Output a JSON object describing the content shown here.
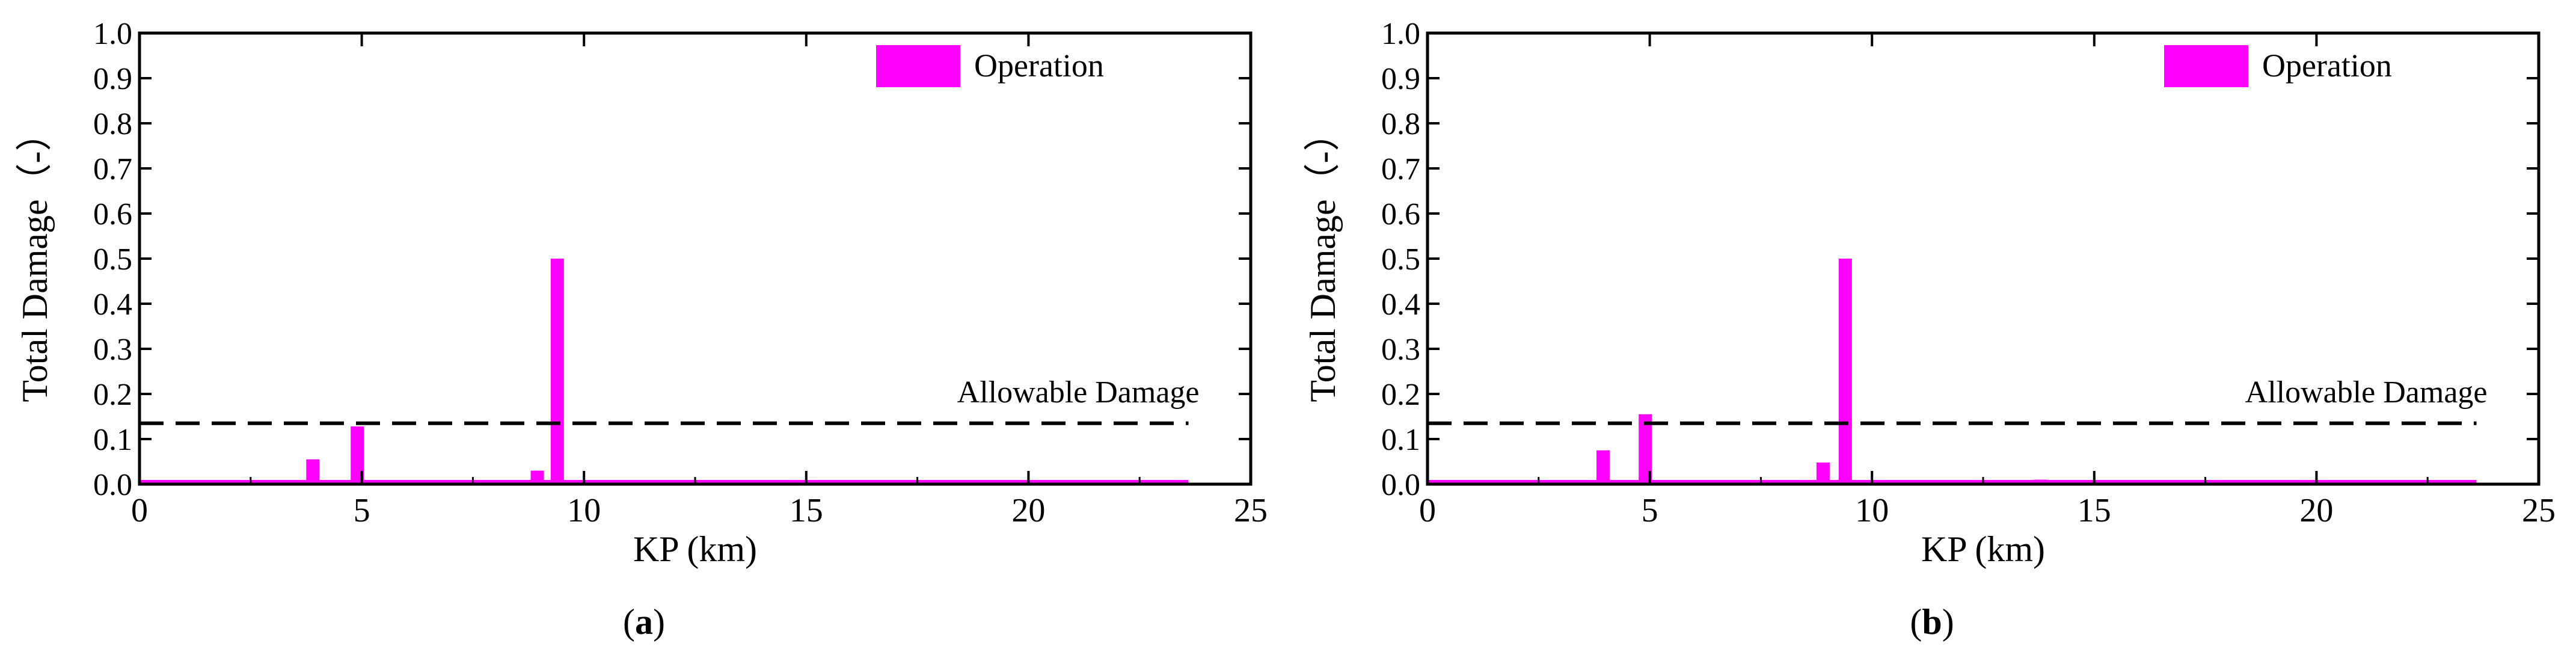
{
  "chart_data": [
    {
      "type": "bar",
      "panel_label": "a",
      "xlabel": "KP (km)",
      "ylabel": "Total Damage（-）",
      "xlim": [
        0,
        25
      ],
      "ylim": [
        0,
        1.0
      ],
      "xticks": [
        0,
        5,
        10,
        15,
        20,
        25
      ],
      "yticks": [
        0.0,
        0.1,
        0.2,
        0.3,
        0.4,
        0.5,
        0.6,
        0.7,
        0.8,
        0.9,
        1.0
      ],
      "series": [
        {
          "name": "Operation",
          "color": "#ff00ff",
          "points": [
            {
              "x": 3.9,
              "y": 0.055
            },
            {
              "x": 4.9,
              "y": 0.128
            },
            {
              "x": 8.95,
              "y": 0.03
            },
            {
              "x": 9.4,
              "y": 0.5
            }
          ],
          "x_extent": [
            0,
            23.6
          ]
        }
      ],
      "reference_line": {
        "label": "Allowable Damage",
        "y": 0.135,
        "xlim": [
          0,
          23.6
        ]
      },
      "legend": "top-right",
      "grid": false
    },
    {
      "type": "bar",
      "panel_label": "b",
      "xlabel": "KP (km)",
      "ylabel": "Total Damage（-）",
      "xlim": [
        0,
        25
      ],
      "ylim": [
        0,
        1.0
      ],
      "xticks": [
        0,
        5,
        10,
        15,
        20,
        25
      ],
      "yticks": [
        0.0,
        0.1,
        0.2,
        0.3,
        0.4,
        0.5,
        0.6,
        0.7,
        0.8,
        0.9,
        1.0
      ],
      "series": [
        {
          "name": "Operation",
          "color": "#ff00ff",
          "points": [
            {
              "x": 2.1,
              "y": 0.007
            },
            {
              "x": 3.95,
              "y": 0.075
            },
            {
              "x": 4.9,
              "y": 0.155
            },
            {
              "x": 8.9,
              "y": 0.048
            },
            {
              "x": 9.4,
              "y": 0.5
            },
            {
              "x": 13.8,
              "y": 0.01
            }
          ],
          "x_extent": [
            0,
            23.6
          ]
        }
      ],
      "reference_line": {
        "label": "Allowable Damage",
        "y": 0.135,
        "xlim": [
          0,
          23.6
        ]
      },
      "legend": "top-right",
      "grid": false
    }
  ],
  "captions": [
    {
      "open": "(",
      "letter": "a",
      "close": ")"
    },
    {
      "open": "(",
      "letter": "b",
      "close": ")"
    }
  ]
}
